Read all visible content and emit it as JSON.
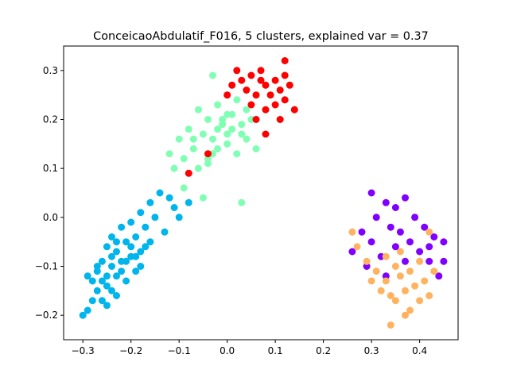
{
  "chart_data": {
    "type": "scatter",
    "title": "ConceicaoAbdulatif_F016, 5 clusters, explained var = 0.37",
    "xlabel": "",
    "ylabel": "",
    "xlim": [
      -0.34,
      0.48
    ],
    "ylim": [
      -0.25,
      0.35
    ],
    "xticks": [
      -0.3,
      -0.2,
      -0.1,
      0.0,
      0.1,
      0.2,
      0.3,
      0.4
    ],
    "xtick_labels": [
      "−0.3",
      "−0.2",
      "−0.1",
      "0.0",
      "0.1",
      "0.2",
      "0.3",
      "0.4"
    ],
    "yticks": [
      -0.2,
      -0.1,
      0.0,
      0.1,
      0.2,
      0.3
    ],
    "ytick_labels": [
      "−0.2",
      "−0.1",
      "0.0",
      "0.1",
      "0.2",
      "0.3"
    ],
    "grid": false,
    "series": [
      {
        "color": "#00b5eb",
        "points": [
          [
            -0.3,
            -0.2
          ],
          [
            -0.29,
            -0.19
          ],
          [
            -0.28,
            -0.17
          ],
          [
            -0.28,
            -0.13
          ],
          [
            -0.27,
            -0.15
          ],
          [
            -0.27,
            -0.11
          ],
          [
            -0.26,
            -0.17
          ],
          [
            -0.26,
            -0.09
          ],
          [
            -0.25,
            -0.14
          ],
          [
            -0.25,
            -0.06
          ],
          [
            -0.25,
            -0.18
          ],
          [
            -0.24,
            -0.1
          ],
          [
            -0.24,
            -0.04
          ],
          [
            -0.23,
            -0.16
          ],
          [
            -0.23,
            -0.12
          ],
          [
            -0.23,
            -0.07
          ],
          [
            -0.22,
            -0.02
          ],
          [
            -0.22,
            -0.09
          ],
          [
            -0.21,
            -0.13
          ],
          [
            -0.21,
            -0.05
          ],
          [
            -0.2,
            -0.01
          ],
          [
            -0.2,
            -0.08
          ],
          [
            -0.19,
            -0.11
          ],
          [
            -0.19,
            -0.04
          ],
          [
            -0.18,
            0.01
          ],
          [
            -0.18,
            -0.07
          ],
          [
            -0.17,
            -0.02
          ],
          [
            -0.16,
            0.03
          ],
          [
            -0.16,
            -0.05
          ],
          [
            -0.15,
            0.0
          ],
          [
            -0.14,
            0.05
          ],
          [
            -0.13,
            -0.03
          ],
          [
            -0.12,
            0.04
          ],
          [
            -0.11,
            0.02
          ],
          [
            -0.1,
            0.0
          ],
          [
            -0.08,
            0.03
          ],
          [
            -0.27,
            -0.1
          ],
          [
            -0.26,
            -0.13
          ],
          [
            -0.24,
            -0.08
          ],
          [
            -0.22,
            -0.11
          ],
          [
            -0.21,
            -0.09
          ],
          [
            -0.2,
            -0.06
          ],
          [
            -0.19,
            -0.08
          ],
          [
            -0.17,
            -0.06
          ],
          [
            -0.23,
            -0.05
          ],
          [
            -0.18,
            -0.1
          ],
          [
            -0.25,
            -0.12
          ],
          [
            -0.29,
            -0.12
          ],
          [
            -0.24,
            -0.15
          ]
        ]
      },
      {
        "color": "#80ffb4",
        "points": [
          [
            -0.12,
            0.13
          ],
          [
            -0.11,
            0.1
          ],
          [
            -0.1,
            0.16
          ],
          [
            -0.09,
            0.12
          ],
          [
            -0.08,
            0.18
          ],
          [
            -0.07,
            0.14
          ],
          [
            -0.06,
            0.22
          ],
          [
            -0.06,
            0.1
          ],
          [
            -0.05,
            0.17
          ],
          [
            -0.04,
            0.2
          ],
          [
            -0.04,
            0.12
          ],
          [
            -0.03,
            0.16
          ],
          [
            -0.02,
            0.23
          ],
          [
            -0.02,
            0.14
          ],
          [
            -0.01,
            0.19
          ],
          [
            0.0,
            0.15
          ],
          [
            0.0,
            0.21
          ],
          [
            0.01,
            0.18
          ],
          [
            0.02,
            0.13
          ],
          [
            0.02,
            0.24
          ],
          [
            0.03,
            0.19
          ],
          [
            0.04,
            0.16
          ],
          [
            0.04,
            0.22
          ],
          [
            0.05,
            0.2
          ],
          [
            0.06,
            0.14
          ],
          [
            -0.03,
            0.29
          ],
          [
            -0.09,
            0.06
          ],
          [
            -0.05,
            0.04
          ],
          [
            0.03,
            0.03
          ],
          [
            -0.01,
            0.2
          ],
          [
            -0.02,
            0.18
          ],
          [
            0.0,
            0.17
          ],
          [
            -0.07,
            0.16
          ],
          [
            0.01,
            0.21
          ],
          [
            -0.03,
            0.13
          ],
          [
            0.03,
            0.17
          ],
          [
            -0.04,
            0.11
          ]
        ]
      },
      {
        "color": "#ff0000",
        "points": [
          [
            -0.04,
            0.13
          ],
          [
            -0.08,
            0.09
          ],
          [
            0.0,
            0.25
          ],
          [
            0.01,
            0.27
          ],
          [
            0.02,
            0.3
          ],
          [
            0.03,
            0.28
          ],
          [
            0.04,
            0.26
          ],
          [
            0.05,
            0.29
          ],
          [
            0.06,
            0.25
          ],
          [
            0.07,
            0.3
          ],
          [
            0.08,
            0.27
          ],
          [
            0.08,
            0.22
          ],
          [
            0.09,
            0.25
          ],
          [
            0.1,
            0.28
          ],
          [
            0.1,
            0.23
          ],
          [
            0.11,
            0.26
          ],
          [
            0.12,
            0.24
          ],
          [
            0.12,
            0.29
          ],
          [
            0.13,
            0.27
          ],
          [
            0.14,
            0.22
          ],
          [
            0.06,
            0.2
          ],
          [
            0.08,
            0.17
          ],
          [
            0.11,
            0.2
          ],
          [
            0.12,
            0.32
          ],
          [
            0.05,
            0.23
          ],
          [
            0.07,
            0.28
          ]
        ]
      },
      {
        "color": "#8000ff",
        "points": [
          [
            0.26,
            -0.07
          ],
          [
            0.28,
            -0.03
          ],
          [
            0.29,
            -0.1
          ],
          [
            0.3,
            0.05
          ],
          [
            0.3,
            -0.05
          ],
          [
            0.31,
            0.0
          ],
          [
            0.32,
            -0.08
          ],
          [
            0.33,
            0.03
          ],
          [
            0.34,
            -0.02
          ],
          [
            0.35,
            -0.06
          ],
          [
            0.35,
            0.02
          ],
          [
            0.36,
            -0.03
          ],
          [
            0.37,
            0.04
          ],
          [
            0.37,
            -0.09
          ],
          [
            0.38,
            -0.05
          ],
          [
            0.39,
            0.0
          ],
          [
            0.4,
            -0.07
          ],
          [
            0.41,
            -0.02
          ],
          [
            0.42,
            -0.09
          ],
          [
            0.43,
            -0.04
          ],
          [
            0.44,
            -0.12
          ],
          [
            0.45,
            -0.05
          ],
          [
            0.45,
            -0.09
          ],
          [
            0.42,
            -0.06
          ],
          [
            0.33,
            -0.12
          ]
        ]
      },
      {
        "color": "#ffb360",
        "points": [
          [
            0.26,
            -0.03
          ],
          [
            0.27,
            -0.06
          ],
          [
            0.29,
            -0.09
          ],
          [
            0.3,
            -0.13
          ],
          [
            0.31,
            -0.11
          ],
          [
            0.32,
            -0.15
          ],
          [
            0.33,
            -0.08
          ],
          [
            0.33,
            -0.13
          ],
          [
            0.34,
            -0.16
          ],
          [
            0.35,
            -0.1
          ],
          [
            0.35,
            -0.17
          ],
          [
            0.36,
            -0.12
          ],
          [
            0.36,
            -0.07
          ],
          [
            0.37,
            -0.15
          ],
          [
            0.38,
            -0.11
          ],
          [
            0.38,
            -0.19
          ],
          [
            0.39,
            -0.14
          ],
          [
            0.4,
            -0.09
          ],
          [
            0.4,
            -0.17
          ],
          [
            0.41,
            -0.13
          ],
          [
            0.42,
            -0.16
          ],
          [
            0.43,
            -0.11
          ],
          [
            0.34,
            -0.22
          ],
          [
            0.42,
            -0.03
          ],
          [
            0.37,
            -0.2
          ]
        ]
      }
    ]
  }
}
